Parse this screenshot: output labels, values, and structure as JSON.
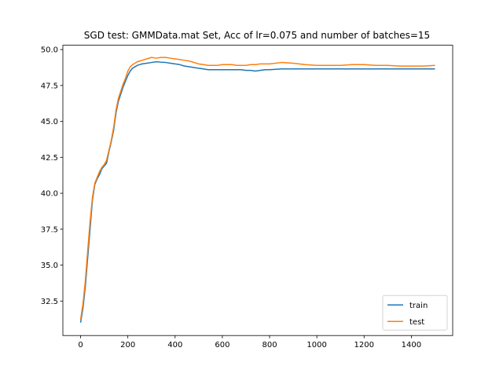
{
  "chart_data": {
    "type": "line",
    "title": "SGD test: GMMData.mat Set, Acc of lr=0.075 and number of batches=15",
    "xlabel": "",
    "ylabel": "",
    "xlim": [
      -75,
      1575
    ],
    "ylim": [
      30.1,
      50.3
    ],
    "xticks": [
      0,
      200,
      400,
      600,
      800,
      1000,
      1200,
      1400
    ],
    "yticks": [
      32.5,
      35.0,
      37.5,
      40.0,
      42.5,
      45.0,
      47.5,
      50.0
    ],
    "xtick_labels": [
      "0",
      "200",
      "400",
      "600",
      "800",
      "1000",
      "1200",
      "1400"
    ],
    "ytick_labels": [
      "32.5",
      "35.0",
      "37.5",
      "40.0",
      "42.5",
      "45.0",
      "47.5",
      "50.0"
    ],
    "grid": false,
    "legend_position": "lower-right",
    "series": [
      {
        "name": "train",
        "color": "#1f77b4",
        "x": [
          0,
          10,
          20,
          30,
          40,
          50,
          60,
          70,
          80,
          90,
          100,
          110,
          120,
          130,
          140,
          150,
          160,
          170,
          180,
          190,
          200,
          210,
          220,
          230,
          240,
          250,
          260,
          280,
          300,
          320,
          340,
          360,
          380,
          400,
          420,
          440,
          460,
          480,
          500,
          520,
          540,
          560,
          580,
          600,
          620,
          640,
          660,
          680,
          700,
          720,
          740,
          760,
          780,
          800,
          850,
          900,
          950,
          1000,
          1050,
          1100,
          1150,
          1200,
          1250,
          1300,
          1350,
          1400,
          1450,
          1500
        ],
        "y": [
          31.0,
          32.0,
          33.5,
          35.5,
          37.5,
          39.5,
          40.6,
          41.0,
          41.3,
          41.7,
          41.9,
          42.1,
          42.9,
          43.6,
          44.4,
          45.6,
          46.4,
          46.9,
          47.4,
          47.8,
          48.2,
          48.5,
          48.7,
          48.8,
          48.9,
          48.95,
          49.0,
          49.05,
          49.1,
          49.15,
          49.12,
          49.1,
          49.05,
          49.0,
          48.95,
          48.85,
          48.8,
          48.75,
          48.7,
          48.65,
          48.6,
          48.6,
          48.6,
          48.6,
          48.6,
          48.6,
          48.6,
          48.6,
          48.55,
          48.55,
          48.5,
          48.55,
          48.6,
          48.6,
          48.65,
          48.65,
          48.65,
          48.65,
          48.65,
          48.65,
          48.65,
          48.65,
          48.65,
          48.65,
          48.65,
          48.65,
          48.65,
          48.65
        ]
      },
      {
        "name": "test",
        "color": "#ff7f0e",
        "x": [
          0,
          10,
          20,
          30,
          40,
          50,
          60,
          70,
          80,
          90,
          100,
          110,
          120,
          130,
          140,
          150,
          160,
          170,
          180,
          190,
          200,
          210,
          220,
          230,
          240,
          250,
          260,
          280,
          300,
          320,
          340,
          360,
          380,
          400,
          420,
          440,
          460,
          480,
          500,
          520,
          540,
          560,
          580,
          600,
          620,
          640,
          660,
          680,
          700,
          720,
          740,
          760,
          780,
          800,
          850,
          900,
          950,
          1000,
          1050,
          1100,
          1150,
          1200,
          1250,
          1300,
          1350,
          1400,
          1450,
          1500
        ],
        "y": [
          31.2,
          32.3,
          33.9,
          36.0,
          38.0,
          39.7,
          40.7,
          41.1,
          41.5,
          41.8,
          42.0,
          42.3,
          43.0,
          43.7,
          44.6,
          45.8,
          46.6,
          47.1,
          47.6,
          48.0,
          48.5,
          48.8,
          48.95,
          49.05,
          49.15,
          49.2,
          49.25,
          49.35,
          49.45,
          49.4,
          49.45,
          49.45,
          49.4,
          49.35,
          49.3,
          49.25,
          49.2,
          49.1,
          49.0,
          48.95,
          48.9,
          48.9,
          48.9,
          48.95,
          48.95,
          48.95,
          48.9,
          48.9,
          48.9,
          48.95,
          48.95,
          49.0,
          49.0,
          49.0,
          49.1,
          49.05,
          48.95,
          48.9,
          48.9,
          48.9,
          48.95,
          48.95,
          48.9,
          48.9,
          48.85,
          48.85,
          48.85,
          48.9
        ]
      }
    ]
  }
}
